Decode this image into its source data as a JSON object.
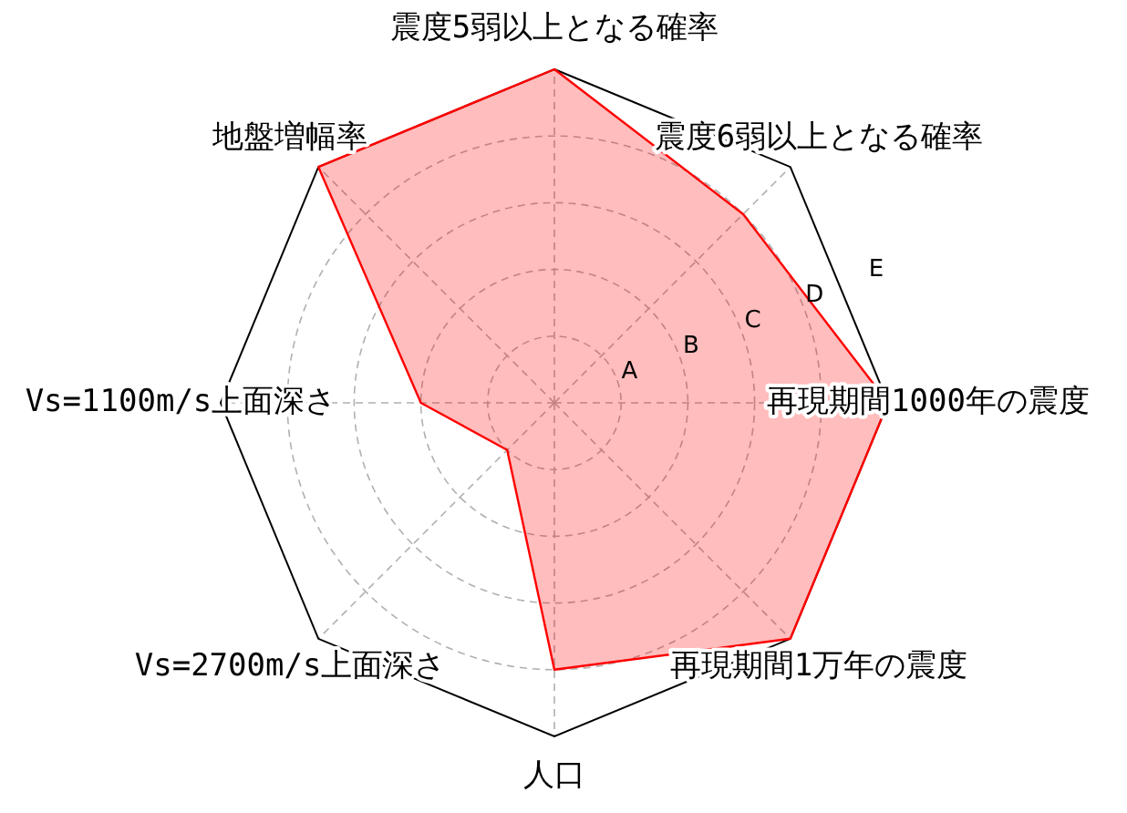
{
  "chart_data": {
    "type": "radar",
    "categories": [
      "震度5弱以上となる確率",
      "震度6弱以上となる確率",
      "再現期間1000年の震度",
      "再現期間1万年の震度",
      "人口",
      "Vs=2700m/s上面深さ",
      "Vs=1100m/s上面深さ",
      "地盤増幅率"
    ],
    "series": [
      {
        "color": "#ff0000",
        "values": [
          5,
          4,
          5,
          5,
          4,
          1,
          2,
          5
        ]
      }
    ],
    "ylim": [
      0,
      5
    ],
    "yticks": [
      {
        "value": 1,
        "label": "A"
      },
      {
        "value": 2,
        "label": "B"
      },
      {
        "value": 3,
        "label": "C"
      },
      {
        "value": 4,
        "label": "D"
      },
      {
        "value": 5,
        "label": "E"
      }
    ],
    "grid": true,
    "line_style": "solid"
  }
}
